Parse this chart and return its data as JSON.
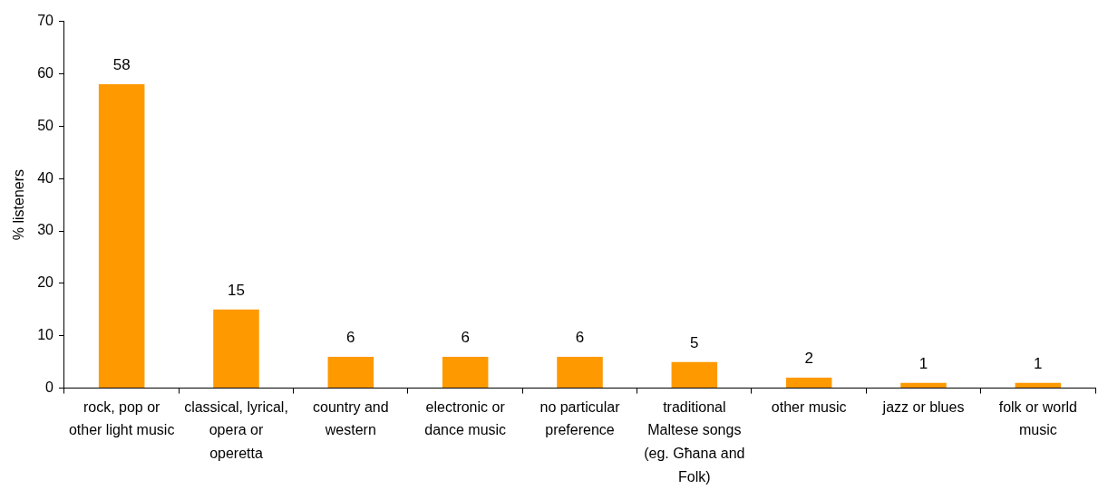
{
  "chart_data": {
    "type": "bar",
    "ylabel": "% listeners",
    "categories": [
      "rock, pop or other light music",
      "classical, lyrical, opera or operetta",
      "country and western",
      "electronic or dance music",
      "no particular preference",
      "traditional Maltese songs (eg. Għana and Folk)",
      "other music",
      "jazz or blues",
      "folk or world music"
    ],
    "values": [
      58,
      15,
      6,
      6,
      6,
      5,
      2,
      1,
      1
    ],
    "color": "#ff9900",
    "ylim": [
      0,
      70
    ],
    "yticks": [
      0,
      10,
      20,
      30,
      40,
      50,
      60,
      70
    ],
    "grid": false,
    "legend": false,
    "data_labels": true
  }
}
